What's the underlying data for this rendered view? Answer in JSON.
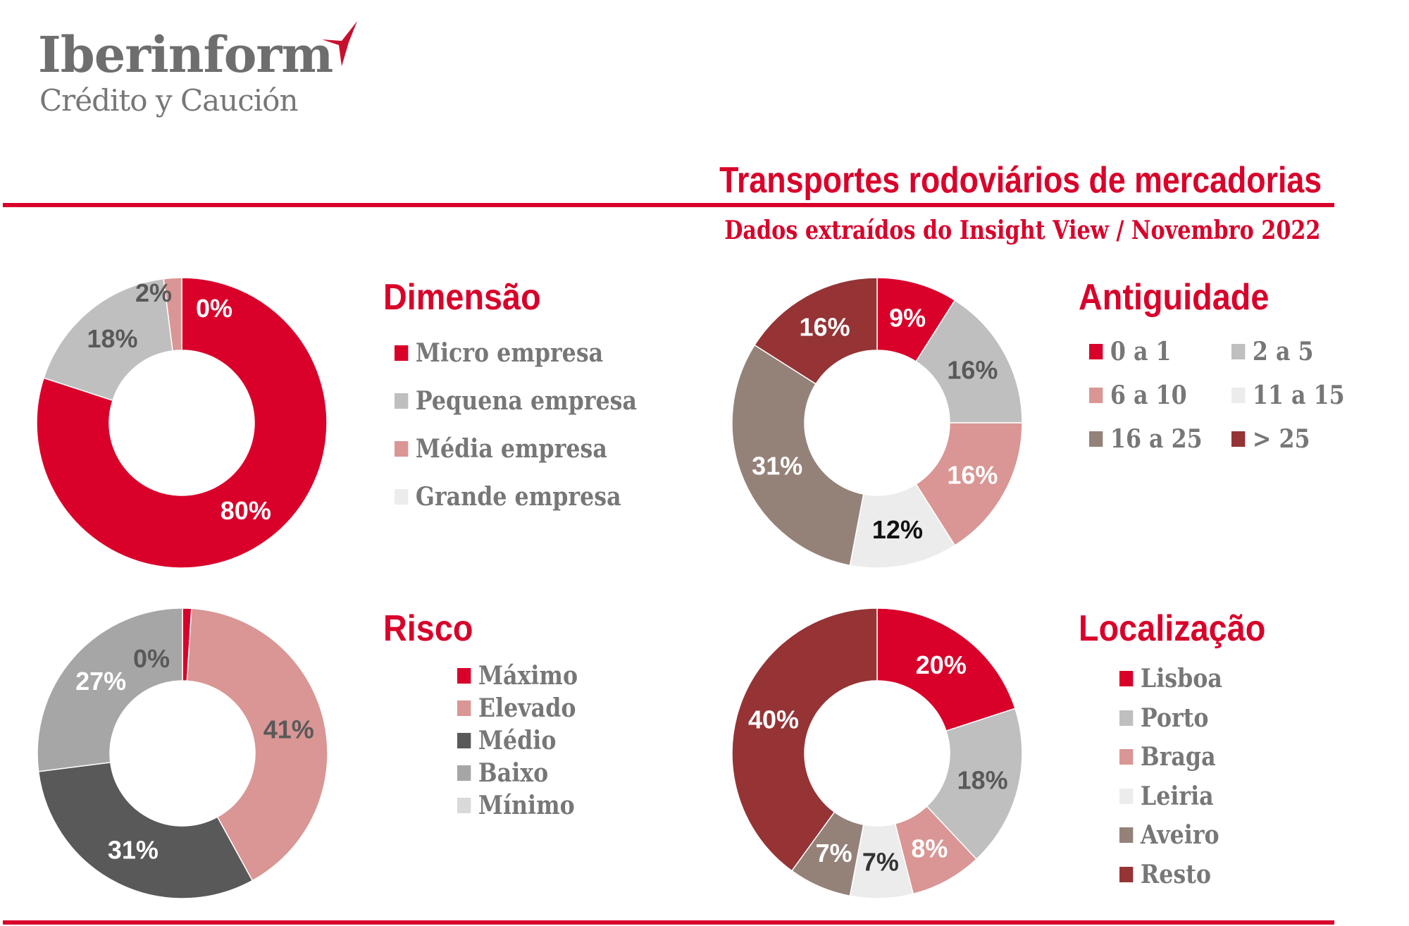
{
  "logo": {
    "name": "Iberinform",
    "tagline": "Crédito y Caución",
    "accent": "#c8102e"
  },
  "header": {
    "title": "Transportes rodoviários de mercadorias",
    "subtitle": "Dados extraídos do Insight View / Novembro 2022"
  },
  "chart_data": [
    {
      "type": "pie",
      "title": "Dimensão",
      "categories": [
        "Micro empresa",
        "Pequena empresa",
        "Média empresa",
        "Grande empresa"
      ],
      "values": [
        80,
        18,
        2,
        0
      ],
      "labels": [
        "80%",
        "18%",
        "2%",
        "0%"
      ],
      "colors": [
        "#d9002a",
        "#bfbfbf",
        "#d99694",
        "#ececec"
      ],
      "label_colors": [
        "#ffffff",
        "#595959",
        "#595959",
        "#ffffff"
      ],
      "legend": "right"
    },
    {
      "type": "pie",
      "title": "Antiguidade",
      "categories": [
        "0 a 1",
        "2 a 5",
        "6 a 10",
        "11 a 15",
        "16 a 25",
        "> 25"
      ],
      "values": [
        9,
        16,
        16,
        12,
        31,
        16
      ],
      "labels": [
        "9%",
        "16%",
        "16%",
        "12%",
        "31%",
        "16%"
      ],
      "colors": [
        "#d9002a",
        "#bfbfbf",
        "#d99694",
        "#ececec",
        "#948279",
        "#953335"
      ],
      "label_colors": [
        "#ffffff",
        "#595959",
        "#ffffff",
        "#111111",
        "#ffffff",
        "#ffffff"
      ],
      "legend": "right"
    },
    {
      "type": "pie",
      "title": "Risco",
      "categories": [
        "Máximo",
        "Elevado",
        "Médio",
        "Baixo",
        "Mínimo"
      ],
      "values": [
        1,
        41,
        31,
        27,
        0
      ],
      "labels": [
        "1%",
        "41%",
        "31%",
        "27%",
        "0%"
      ],
      "colors": [
        "#d9002a",
        "#d99694",
        "#595959",
        "#a6a6a6",
        "#d9d9d9"
      ],
      "label_colors": [
        "#ffffff",
        "#595959",
        "#ffffff",
        "#ffffff",
        "#595959"
      ],
      "legend": "right"
    },
    {
      "type": "pie",
      "title": "Localização",
      "categories": [
        "Lisboa",
        "Porto",
        "Braga",
        "Leiria",
        "Aveiro",
        "Resto"
      ],
      "values": [
        20,
        18,
        8,
        7,
        7,
        40
      ],
      "labels": [
        "20%",
        "18%",
        "8%",
        "7%",
        "7%",
        "40%"
      ],
      "colors": [
        "#d9002a",
        "#bfbfbf",
        "#d99694",
        "#ececec",
        "#948279",
        "#953335"
      ],
      "label_colors": [
        "#ffffff",
        "#595959",
        "#ffffff",
        "#333333",
        "#ffffff",
        "#ffffff"
      ],
      "legend": "right"
    }
  ]
}
